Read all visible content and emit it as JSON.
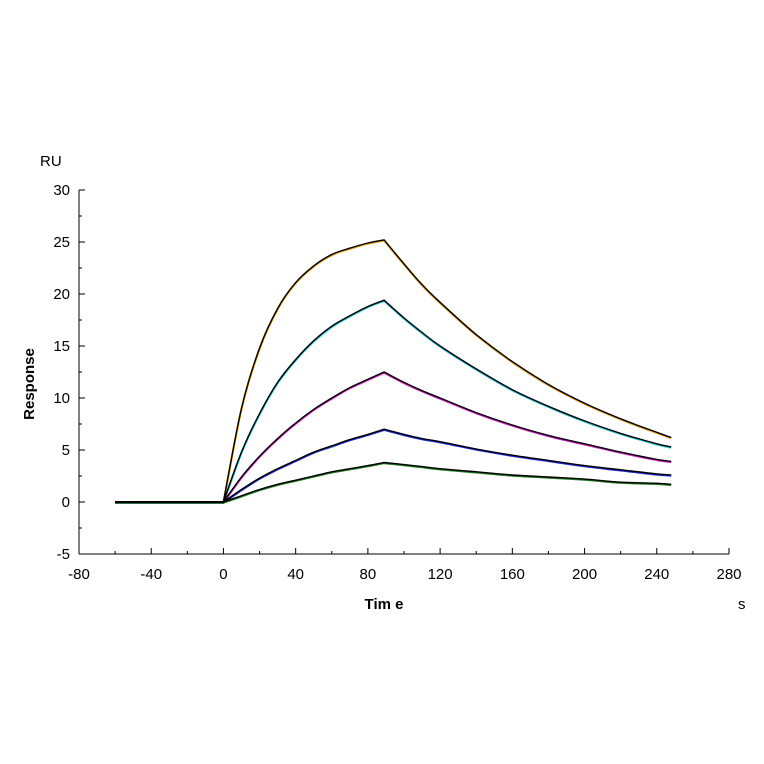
{
  "chart_data": {
    "type": "line",
    "xlabel": "Tim e",
    "ylabel": "Response",
    "x_unit": "s",
    "y_unit": "RU",
    "xlim": [
      -80,
      280
    ],
    "ylim": [
      -5,
      30
    ],
    "x_ticks": [
      -80,
      -40,
      0,
      40,
      80,
      120,
      160,
      200,
      240,
      280
    ],
    "y_ticks": [
      -5,
      0,
      5,
      10,
      15,
      20,
      25,
      30
    ],
    "grid": false,
    "legend": "none",
    "fit_color": "#000000",
    "x": [
      -60,
      -40,
      -20,
      0,
      10,
      20,
      30,
      40,
      50,
      60,
      70,
      80,
      89,
      100,
      110,
      120,
      140,
      160,
      180,
      200,
      220,
      240,
      248
    ],
    "series": [
      {
        "color": "#e8a21c",
        "values": [
          0,
          0,
          0,
          0,
          9.0,
          14.8,
          18.6,
          21.1,
          22.7,
          23.8,
          24.4,
          24.9,
          25.2,
          22.9,
          20.9,
          19.2,
          16.1,
          13.5,
          11.3,
          9.5,
          8.0,
          6.7,
          6.2
        ]
      },
      {
        "color": "#22c8d8",
        "values": [
          0,
          0,
          0,
          0,
          4.8,
          8.5,
          11.5,
          13.7,
          15.5,
          16.9,
          17.9,
          18.8,
          19.4,
          17.7,
          16.3,
          15.0,
          12.8,
          10.8,
          9.2,
          7.8,
          6.6,
          5.6,
          5.3
        ]
      },
      {
        "color": "#d020c8",
        "values": [
          0,
          0,
          0,
          0,
          2.4,
          4.4,
          6.1,
          7.6,
          8.9,
          10.0,
          11.0,
          11.8,
          12.5,
          11.5,
          10.7,
          10.0,
          8.6,
          7.4,
          6.4,
          5.6,
          4.8,
          4.1,
          3.9
        ]
      },
      {
        "color": "#1a2ad8",
        "values": [
          0,
          0,
          0,
          0,
          1.2,
          2.3,
          3.2,
          4.0,
          4.8,
          5.4,
          6.0,
          6.5,
          7.0,
          6.5,
          6.1,
          5.8,
          5.1,
          4.5,
          4.0,
          3.5,
          3.1,
          2.7,
          2.6
        ]
      },
      {
        "color": "#1f7a1f",
        "values": [
          0,
          0,
          0,
          0,
          0.6,
          1.2,
          1.7,
          2.1,
          2.5,
          2.9,
          3.2,
          3.5,
          3.8,
          3.6,
          3.4,
          3.2,
          2.9,
          2.6,
          2.4,
          2.2,
          1.9,
          1.8,
          1.7
        ]
      }
    ]
  }
}
